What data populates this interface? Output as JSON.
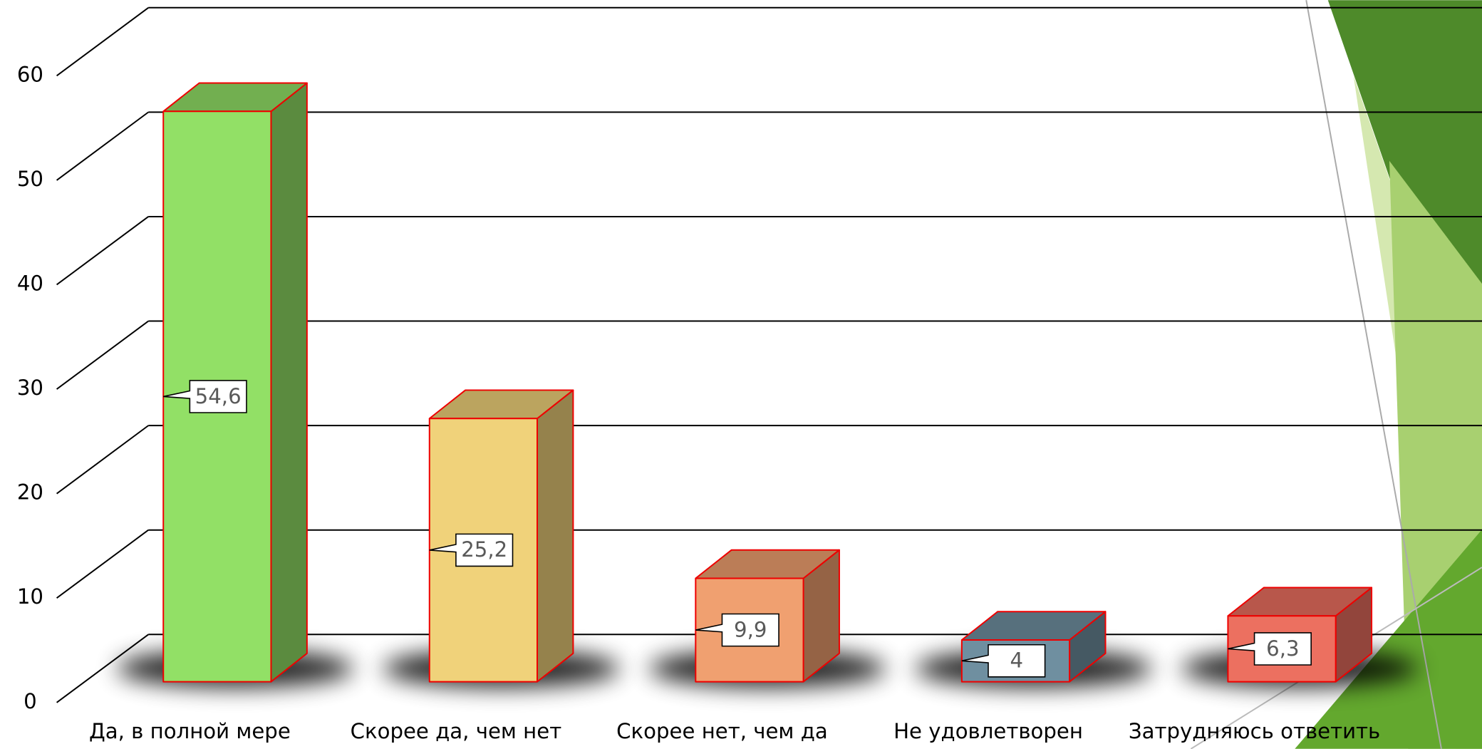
{
  "chart_data": {
    "type": "bar3d",
    "categories": [
      "Да, в полной мере",
      "Скорее да, чем нет",
      "Скорее нет, чем да",
      "Не удовлетворен",
      "Затрудняюсь ответить"
    ],
    "values": [
      54.6,
      25.2,
      9.9,
      4,
      6.3
    ],
    "value_labels": [
      "54,6",
      "25,2",
      "9,9",
      "4",
      "6,3"
    ],
    "colors": [
      "#92e066",
      "#f0d27a",
      "#f0a070",
      "#6f8fa0",
      "#ec7060"
    ],
    "ylim": [
      0,
      60
    ],
    "yticks": [
      0,
      10,
      20,
      30,
      40,
      50,
      60
    ],
    "grid": true
  }
}
